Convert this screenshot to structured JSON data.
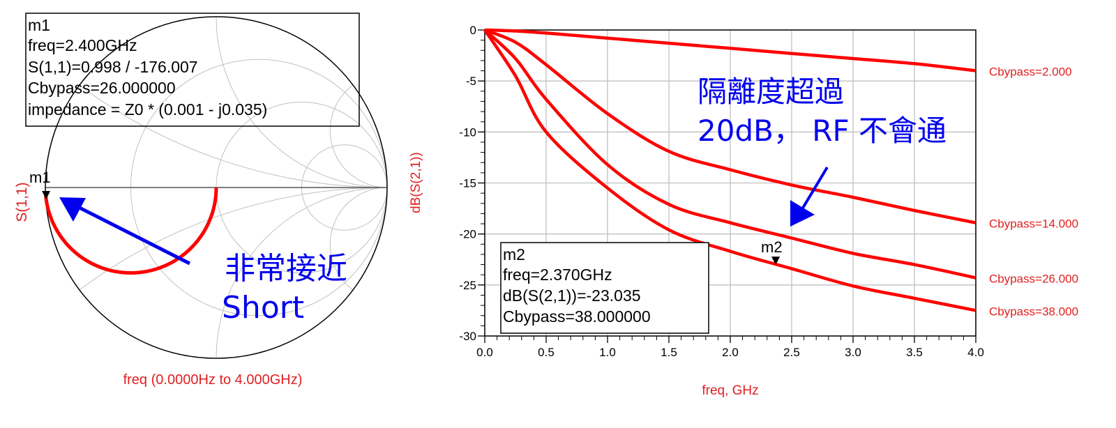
{
  "colors": {
    "trace": "#ff0000",
    "annotation": "#0000ee",
    "grid": "#c0c0c0",
    "axis": "#000000",
    "label": "#e02020"
  },
  "chart_data": [
    {
      "type": "smith",
      "ylabel": "S(1,1)",
      "xlabel": "freq (0.0000Hz to 4.000GHz)",
      "grid_resistance": [
        0.333,
        1,
        3
      ],
      "grid_reactance": [
        0.333,
        1,
        3
      ],
      "series": [
        {
          "trace": "S(1,1)",
          "gamma_points": [
            [
              0,
              0
            ],
            [
              -0.05,
              -0.22
            ],
            [
              -0.2,
              -0.4
            ],
            [
              -0.35,
              -0.48
            ],
            [
              -0.5,
              -0.5
            ],
            [
              -0.65,
              -0.48
            ],
            [
              -0.8,
              -0.4
            ],
            [
              -0.95,
              -0.22
            ],
            [
              -0.995,
              -0.07
            ]
          ]
        }
      ],
      "marker": {
        "name": "m1",
        "lines": [
          "m1",
          "freq=2.400GHz",
          "S(1,1)=0.998 / -176.007",
          "Cbypass=26.000000",
          "impedance = Z0 * (0.001 - j0.035)"
        ],
        "magnitude": 0.998,
        "angle_deg": -176.007
      },
      "annotation": [
        "非常接近",
        "Short"
      ]
    },
    {
      "type": "line",
      "xlabel": "freq, GHz",
      "ylabel": "dB(S(2,1))",
      "xlim": [
        0,
        4
      ],
      "ylim": [
        -30,
        0
      ],
      "xticks": [
        "0.0",
        "0.5",
        "1.0",
        "1.5",
        "2.0",
        "2.5",
        "3.0",
        "3.5",
        "4.0"
      ],
      "yticks": [
        "0",
        "-5",
        "-10",
        "-15",
        "-20",
        "-25",
        "-30"
      ],
      "grid": true,
      "x": [
        0,
        0.25,
        0.5,
        1.0,
        1.5,
        2.0,
        2.5,
        3.0,
        3.5,
        4.0
      ],
      "series": [
        {
          "name": "Cbypass=2.000",
          "values": [
            0,
            -0.1,
            -0.3,
            -0.8,
            -1.3,
            -1.8,
            -2.3,
            -2.8,
            -3.3,
            -4.0
          ]
        },
        {
          "name": "Cbypass=14.000",
          "values": [
            0,
            -1.2,
            -3.4,
            -8.2,
            -11.9,
            -13.7,
            -15.2,
            -16.4,
            -17.7,
            -18.9
          ]
        },
        {
          "name": "Cbypass=26.000",
          "values": [
            0,
            -2.8,
            -6.8,
            -13.2,
            -17.1,
            -18.9,
            -20.4,
            -21.9,
            -23.0,
            -24.3
          ]
        },
        {
          "name": "Cbypass=38.000",
          "values": [
            0,
            -4.5,
            -10.0,
            -15.5,
            -19.6,
            -21.7,
            -23.4,
            -25.1,
            -26.3,
            -27.5
          ]
        }
      ],
      "marker": {
        "name": "m2",
        "x": 2.37,
        "y": -23.035,
        "lines": [
          "m2",
          "freq=2.370GHz",
          "dB(S(2,1))=-23.035",
          "Cbypass=38.000000"
        ]
      },
      "annotation": [
        "隔離度超過",
        "20dB， RF 不會通"
      ]
    }
  ]
}
